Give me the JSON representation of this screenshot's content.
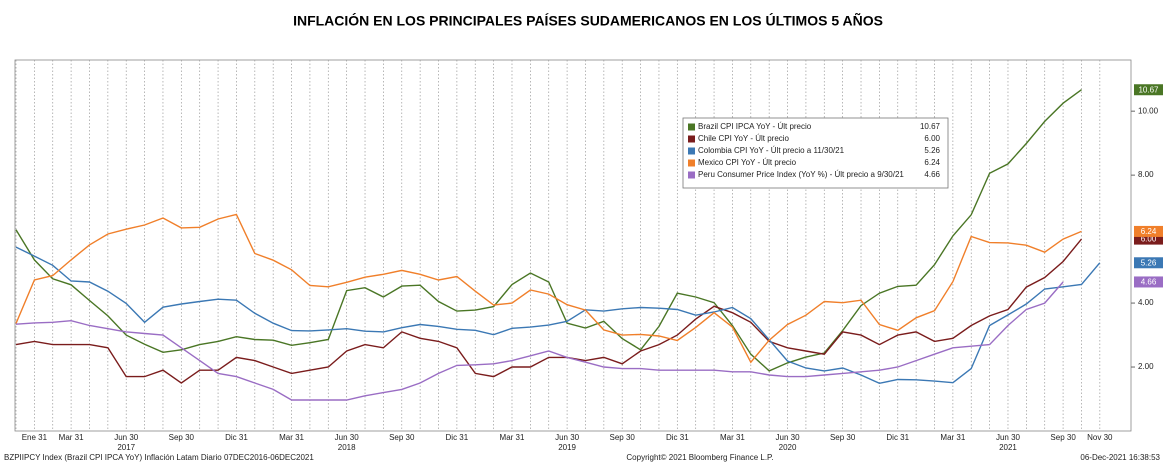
{
  "chart_data": {
    "type": "line",
    "title": "INFLACIÓN EN LOS PRINCIPALES PAÍSES SUDAMERICANOS EN LOS ÚLTIMOS 5 AÑOS",
    "categories": [
      null,
      "Ene 31",
      null,
      "Mar 31",
      null,
      null,
      "Jun 30",
      null,
      null,
      "Sep 30",
      null,
      null,
      "Dic 31",
      null,
      null,
      "Mar 31",
      null,
      null,
      "Jun 30",
      null,
      null,
      "Sep 30",
      null,
      null,
      "Dic 31",
      null,
      null,
      "Mar 31",
      null,
      null,
      "Jun 30",
      null,
      null,
      "Sep 30",
      null,
      null,
      "Dic 31",
      null,
      null,
      "Mar 31",
      null,
      null,
      "Jun 30",
      null,
      null,
      "Sep 30",
      null,
      null,
      "Dic 31",
      null,
      null,
      "Mar 31",
      null,
      null,
      "Jun 30",
      null,
      null,
      "Sep 30",
      null,
      "Nov 30"
    ],
    "years": [
      "2017",
      "2018",
      "2019",
      "2020",
      "2021"
    ],
    "series": [
      {
        "name": "Brazil CPI IPCA YoY - Últ precio",
        "last_label": "10.67",
        "color": "#4a7625",
        "values": [
          6.29,
          5.35,
          4.76,
          4.57,
          4.08,
          3.6,
          3.0,
          2.71,
          2.46,
          2.54,
          2.7,
          2.8,
          2.95,
          2.86,
          2.84,
          2.68,
          2.76,
          2.86,
          4.39,
          4.48,
          4.19,
          4.53,
          4.56,
          4.05,
          3.75,
          3.78,
          3.89,
          4.58,
          4.94,
          4.66,
          3.37,
          3.22,
          3.43,
          2.89,
          2.54,
          3.27,
          4.31,
          4.19,
          4.01,
          3.3,
          2.4,
          1.88,
          2.13,
          2.31,
          2.44,
          3.14,
          3.92,
          4.31,
          4.52,
          4.56,
          5.2,
          6.1,
          6.76,
          8.06,
          8.35,
          8.99,
          9.68,
          10.25,
          10.67,
          null
        ]
      },
      {
        "name": "Chile CPI YoY - Últ precio",
        "last_label": "6.00",
        "color": "#7a1c1c",
        "values": [
          2.7,
          2.8,
          2.7,
          2.7,
          2.7,
          2.6,
          1.7,
          1.7,
          1.9,
          1.5,
          1.9,
          1.9,
          2.3,
          2.2,
          2.0,
          1.8,
          1.9,
          2.0,
          2.5,
          2.7,
          2.6,
          3.1,
          2.9,
          2.8,
          2.6,
          1.8,
          1.7,
          2.0,
          2.0,
          2.3,
          2.3,
          2.2,
          2.3,
          2.1,
          2.5,
          2.7,
          3.0,
          3.5,
          3.9,
          3.7,
          3.4,
          2.8,
          2.6,
          2.5,
          2.4,
          3.1,
          3.0,
          2.7,
          3.0,
          3.1,
          2.8,
          2.9,
          3.3,
          3.6,
          3.8,
          4.5,
          4.8,
          5.3,
          6.0,
          null
        ]
      },
      {
        "name": "Colombia CPI YoY - Últ precio a 11/30/21",
        "last_label": "5.26",
        "color": "#3b78b4",
        "values": [
          5.75,
          5.47,
          5.18,
          4.69,
          4.66,
          4.37,
          3.99,
          3.4,
          3.87,
          3.97,
          4.05,
          4.12,
          4.09,
          3.68,
          3.37,
          3.14,
          3.13,
          3.16,
          3.2,
          3.12,
          3.1,
          3.23,
          3.33,
          3.27,
          3.18,
          3.15,
          3.01,
          3.21,
          3.25,
          3.31,
          3.43,
          3.79,
          3.75,
          3.82,
          3.86,
          3.84,
          3.8,
          3.62,
          3.72,
          3.86,
          3.51,
          2.85,
          2.19,
          1.97,
          1.88,
          1.97,
          1.75,
          1.49,
          1.61,
          1.6,
          1.56,
          1.51,
          1.95,
          3.3,
          3.63,
          3.97,
          4.44,
          4.51,
          4.58,
          5.26
        ]
      },
      {
        "name": "Mexico CPI YoY - Últ precio",
        "last_label": "6.24",
        "color": "#f07f2a",
        "values": [
          3.36,
          4.72,
          4.86,
          5.35,
          5.82,
          6.16,
          6.31,
          6.44,
          6.66,
          6.35,
          6.37,
          6.63,
          6.77,
          5.55,
          5.34,
          5.04,
          4.55,
          4.51,
          4.65,
          4.81,
          4.9,
          5.02,
          4.9,
          4.72,
          4.83,
          4.37,
          3.94,
          4.0,
          4.41,
          4.28,
          3.95,
          3.78,
          3.16,
          3.0,
          3.02,
          2.97,
          2.83,
          3.24,
          3.7,
          3.25,
          2.15,
          2.84,
          3.33,
          3.62,
          4.05,
          4.01,
          4.09,
          3.33,
          3.15,
          3.54,
          3.76,
          4.67,
          6.08,
          5.89,
          5.88,
          5.81,
          5.59,
          6.0,
          6.24,
          null
        ]
      },
      {
        "name": "Peru Consumer Price Index (YoY %) - Últ precio a 9/30/21",
        "last_label": "4.66",
        "color": "#9a6dc4",
        "values": [
          3.34,
          3.38,
          3.4,
          3.45,
          3.3,
          3.2,
          3.1,
          3.05,
          3.0,
          2.6,
          2.2,
          1.8,
          1.7,
          1.5,
          1.3,
          0.97,
          0.97,
          0.97,
          0.97,
          1.1,
          1.2,
          1.3,
          1.5,
          1.8,
          2.05,
          2.07,
          2.1,
          2.2,
          2.35,
          2.5,
          2.3,
          2.15,
          2.0,
          1.95,
          1.95,
          1.9,
          1.9,
          1.9,
          1.9,
          1.85,
          1.85,
          1.75,
          1.7,
          1.7,
          1.75,
          1.8,
          1.85,
          1.9,
          2.0,
          2.2,
          2.4,
          2.6,
          2.65,
          2.7,
          3.3,
          3.8,
          4.0,
          4.66,
          null,
          null
        ]
      }
    ],
    "ylim": [
      0,
      11.6
    ],
    "yticks": [
      {
        "value": 2,
        "label": "2.00"
      },
      {
        "value": 4,
        "label": "4.00"
      },
      {
        "value": 8,
        "label": "8.00"
      },
      {
        "value": 10,
        "label": "10.00"
      }
    ],
    "grid": "vertical",
    "footer_left": "BZPIIPCY Index (Brazil CPI IPCA YoY) Inflación Latam  Diario 07DEC2016-06DEC2021",
    "footer_center": "Copyright© 2021 Bloomberg Finance L.P.",
    "footer_right": "06-Dec-2021 16:38:53"
  }
}
